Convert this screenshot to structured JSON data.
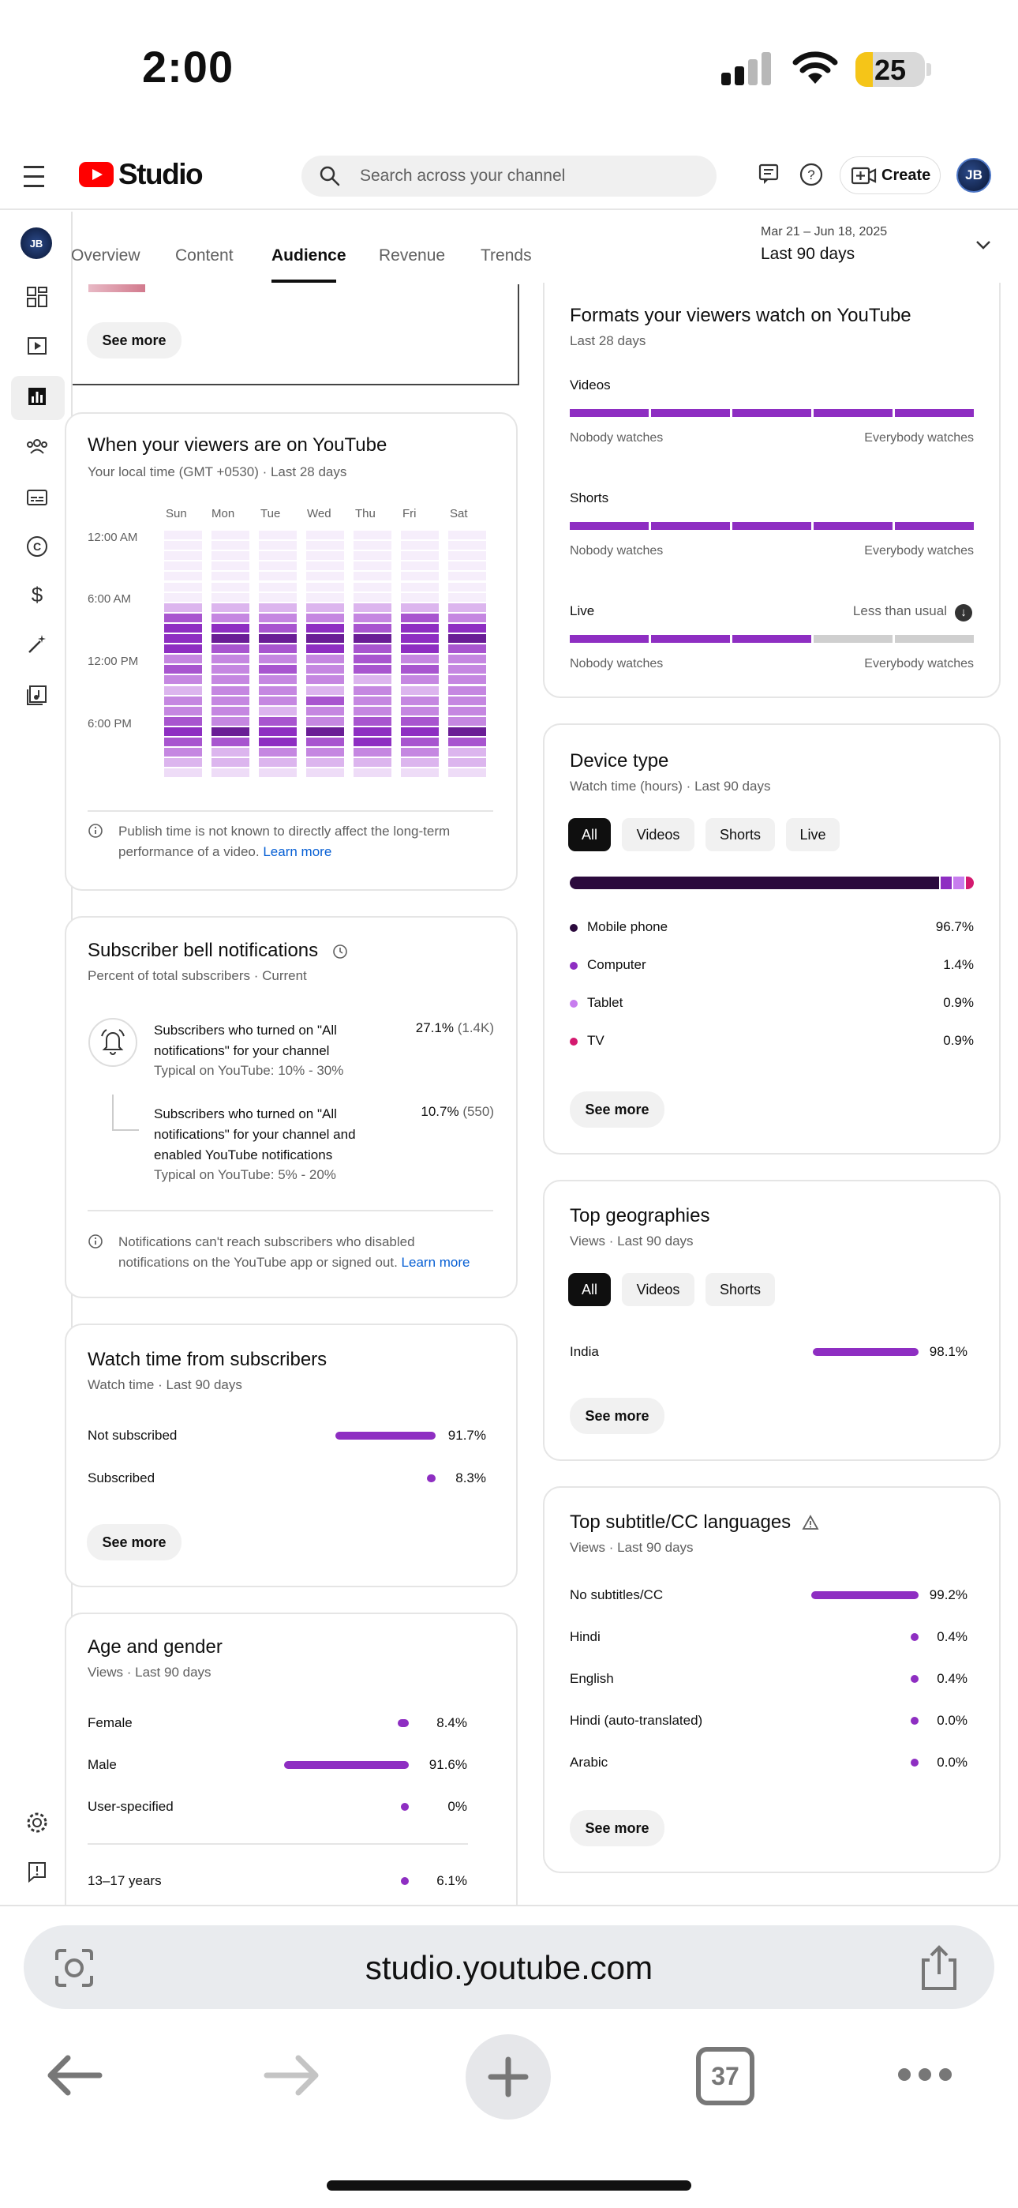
{
  "status": {
    "time": "2:00",
    "battery": 25
  },
  "header": {
    "app": "Studio",
    "search_placeholder": "Search across your channel",
    "create_label": "Create",
    "avatar_initials": "JB"
  },
  "tabs": [
    {
      "label": "Overview",
      "active": false
    },
    {
      "label": "Content",
      "active": false
    },
    {
      "label": "Audience",
      "active": true
    },
    {
      "label": "Revenue",
      "active": false
    },
    {
      "label": "Trends",
      "active": false
    }
  ],
  "date_range": {
    "small": "Mar 21 – Jun 18, 2025",
    "main": "Last 90 days"
  },
  "top_card": {
    "see_more": "See more"
  },
  "when_viewers": {
    "title": "When your viewers are on YouTube",
    "subtitle": "Your local time (GMT +0530) · Last 28 days",
    "days": [
      "Sun",
      "Mon",
      "Tue",
      "Wed",
      "Thu",
      "Fri",
      "Sat"
    ],
    "time_labels": [
      "12:00 AM",
      "6:00 AM",
      "12:00 PM",
      "6:00 PM"
    ],
    "note": "Publish time is not known to directly affect the long-term performance of a video.",
    "learn_more": "Learn more"
  },
  "bell": {
    "title": "Subscriber bell notifications",
    "subtitle": "Percent of total subscribers · Current",
    "rows": [
      {
        "text": "Subscribers who turned on \"All notifications\" for your channel",
        "typical": "Typical on YouTube: 10% - 30%",
        "pct": "27.1%",
        "count": "(1.4K)"
      },
      {
        "text": "Subscribers who turned on \"All notifications\" for your channel and enabled YouTube notifications",
        "typical": "Typical on YouTube: 5% - 20%",
        "pct": "10.7%",
        "count": "(550)"
      }
    ],
    "note": "Notifications can't reach subscribers who disabled notifications on the YouTube app or signed out.",
    "learn_more": "Learn more"
  },
  "watch_subs": {
    "title": "Watch time from subscribers",
    "subtitle": "Watch time · Last 90 days",
    "rows": [
      {
        "label": "Not subscribed",
        "value": "91.7%",
        "frac": 0.917
      },
      {
        "label": "Subscribed",
        "value": "8.3%",
        "frac": 0.083
      }
    ],
    "see_more": "See more"
  },
  "age_gender": {
    "title": "Age and gender",
    "subtitle": "Views · Last 90 days",
    "rows": [
      {
        "label": "Female",
        "value": "8.4%",
        "frac": 0.084
      },
      {
        "label": "Male",
        "value": "91.6%",
        "frac": 0.916
      },
      {
        "label": "User-specified",
        "value": "0%",
        "frac": 0
      }
    ],
    "age_rows": [
      {
        "label": "13–17 years",
        "value": "6.1%",
        "frac": 0.061
      }
    ]
  },
  "formats": {
    "title": "Formats your viewers watch on YouTube",
    "subtitle": "Last 28 days",
    "rows": [
      {
        "label": "Videos",
        "filled": 5,
        "note": ""
      },
      {
        "label": "Shorts",
        "filled": 5,
        "note": ""
      },
      {
        "label": "Live",
        "filled": 3,
        "note": "Less than usual"
      }
    ],
    "min_label": "Nobody watches",
    "max_label": "Everybody watches"
  },
  "device": {
    "title": "Device type",
    "subtitle": "Watch time (hours) · Last 90 days",
    "chips": [
      "All",
      "Videos",
      "Shorts",
      "Live"
    ],
    "rows": [
      {
        "label": "Mobile phone",
        "value": "96.7%",
        "color": "#2b0a3d"
      },
      {
        "label": "Computer",
        "value": "1.4%",
        "color": "#8e2ec2"
      },
      {
        "label": "Tablet",
        "value": "0.9%",
        "color": "#c77dee"
      },
      {
        "label": "TV",
        "value": "0.9%",
        "color": "#d4196f"
      }
    ],
    "see_more": "See more"
  },
  "geo": {
    "title": "Top geographies",
    "subtitle": "Views · Last 90 days",
    "chips": [
      "All",
      "Videos",
      "Shorts"
    ],
    "rows": [
      {
        "label": "India",
        "value": "98.1%",
        "frac": 0.981
      }
    ],
    "see_more": "See more"
  },
  "subtitles": {
    "title": "Top subtitle/CC languages",
    "subtitle": "Views · Last 90 days",
    "rows": [
      {
        "label": "No subtitles/CC",
        "value": "99.2%",
        "frac": 0.992
      },
      {
        "label": "Hindi",
        "value": "0.4%",
        "frac": 0.004
      },
      {
        "label": "English",
        "value": "0.4%",
        "frac": 0.004
      },
      {
        "label": "Hindi (auto-translated)",
        "value": "0.0%",
        "frac": 0
      },
      {
        "label": "Arabic",
        "value": "0.0%",
        "frac": 0
      }
    ],
    "see_more": "See more"
  },
  "browser": {
    "url": "studio.youtube.com",
    "tab_count": "37"
  }
}
